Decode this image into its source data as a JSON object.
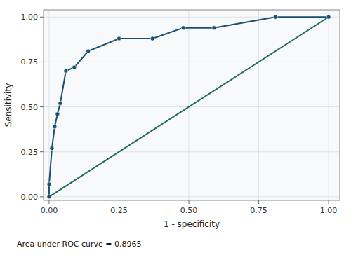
{
  "chart_data": {
    "type": "line",
    "xlabel": "1 - specificity",
    "ylabel": "Sensitivity",
    "series": [
      {
        "x": [
          0.0,
          0.0,
          0.01,
          0.02,
          0.03,
          0.04,
          0.06,
          0.09,
          0.14,
          0.25,
          0.37,
          0.48,
          0.59,
          0.81,
          1.0
        ],
        "values": [
          0.0,
          0.07,
          0.27,
          0.39,
          0.46,
          0.52,
          0.7,
          0.72,
          0.81,
          0.88,
          0.88,
          0.94,
          0.94,
          1.0,
          1.0
        ],
        "color": "#1b4f72",
        "marker": "circle",
        "line_style": "solid"
      },
      {
        "x": [
          0.0,
          1.0
        ],
        "values": [
          0.0,
          1.0
        ],
        "color": "#1e6b5e",
        "marker": "none",
        "line_style": "solid"
      }
    ],
    "xlim": [
      -0.02,
      1.04
    ],
    "ylim": [
      -0.02,
      1.04
    ],
    "xticks": [
      {
        "value": 0.0,
        "label": "0.00"
      },
      0.25,
      {
        "value": 0.5,
        "label": "0.50"
      },
      0.75,
      {
        "value": 1.0,
        "label": "1.00"
      }
    ],
    "yticks": [
      {
        "value": 0.0,
        "label": "0.00"
      },
      0.25,
      {
        "value": 0.5,
        "label": "0.50"
      },
      0.75,
      {
        "value": 1.0,
        "label": "1.00"
      }
    ],
    "grid": true,
    "annotations": [
      "Area under ROC curve = 0.8965"
    ]
  }
}
